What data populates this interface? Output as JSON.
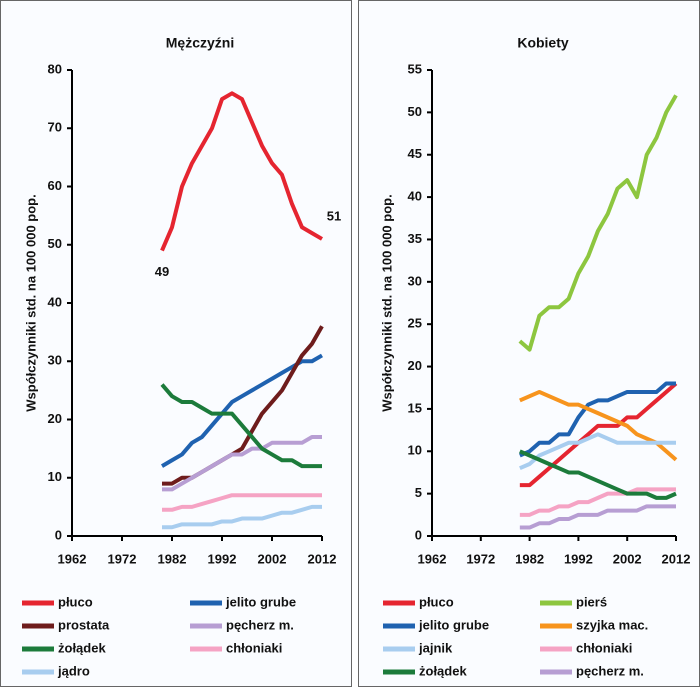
{
  "chart_data": [
    {
      "type": "line",
      "title": "Mężczyźni",
      "ylabel": "Współczynniki std. na 100 000 pop.",
      "x": [
        1980,
        1982,
        1984,
        1986,
        1988,
        1990,
        1992,
        1994,
        1996,
        1998,
        2000,
        2002,
        2004,
        2006,
        2008,
        2010,
        2012
      ],
      "xlim": [
        1962,
        2012
      ],
      "xticks": [
        1962,
        1972,
        1982,
        1992,
        2002,
        2012
      ],
      "ylim": [
        0,
        80
      ],
      "yticks": [
        0,
        10,
        20,
        30,
        40,
        50,
        60,
        70,
        80
      ],
      "annotations": [
        "49",
        "51"
      ],
      "series": [
        {
          "name": "płuco",
          "color": "#e52530",
          "values": [
            49,
            53,
            60,
            64,
            67,
            70,
            75,
            76,
            75,
            71,
            67,
            64,
            62,
            57,
            53,
            52,
            51
          ]
        },
        {
          "name": "jelito grube",
          "color": "#1f62b0",
          "values": [
            12,
            13,
            14,
            16,
            17,
            19,
            21,
            23,
            24,
            25,
            26,
            27,
            28,
            29,
            30,
            30,
            31
          ]
        },
        {
          "name": "prostata",
          "color": "#6e1c1c",
          "values": [
            9,
            9,
            10,
            10,
            11,
            12,
            13,
            14,
            15,
            18,
            21,
            23,
            25,
            28,
            31,
            33,
            36
          ]
        },
        {
          "name": "pęcherz m.",
          "color": "#b79ed3",
          "values": [
            8,
            8,
            9,
            10,
            11,
            12,
            13,
            14,
            14,
            15,
            15,
            16,
            16,
            16,
            16,
            17,
            17
          ]
        },
        {
          "name": "żołądek",
          "color": "#1c7b3b",
          "values": [
            26,
            24,
            23,
            23,
            22,
            21,
            21,
            21,
            19,
            17,
            15,
            14,
            13,
            13,
            12,
            12,
            12
          ]
        },
        {
          "name": "chłoniaki",
          "color": "#f5a3c4",
          "values": [
            4.5,
            4.5,
            5,
            5,
            5.5,
            6,
            6.5,
            7,
            7,
            7,
            7,
            7,
            7,
            7,
            7,
            7,
            7
          ]
        },
        {
          "name": "jądro",
          "color": "#a8cdef",
          "values": [
            1.5,
            1.5,
            2,
            2,
            2,
            2,
            2.5,
            2.5,
            3,
            3,
            3,
            3.5,
            4,
            4,
            4.5,
            5,
            5
          ]
        }
      ]
    },
    {
      "type": "line",
      "title": "Kobiety",
      "ylabel": "Współczynniki std. na 100 000 pop.",
      "x": [
        1980,
        1982,
        1984,
        1986,
        1988,
        1990,
        1992,
        1994,
        1996,
        1998,
        2000,
        2002,
        2004,
        2006,
        2008,
        2010,
        2012
      ],
      "xlim": [
        1962,
        2012
      ],
      "xticks": [
        1962,
        1972,
        1982,
        1992,
        2002,
        2012
      ],
      "ylim": [
        0,
        55
      ],
      "yticks": [
        0,
        5,
        10,
        15,
        20,
        25,
        30,
        35,
        40,
        45,
        50,
        55
      ],
      "series": [
        {
          "name": "płuco",
          "color": "#e52530",
          "values": [
            6,
            6,
            7,
            8,
            9,
            10,
            11,
            12,
            13,
            13,
            13,
            14,
            14,
            15,
            16,
            17,
            18
          ]
        },
        {
          "name": "pierś",
          "color": "#8dc63f",
          "values": [
            23,
            22,
            26,
            27,
            27,
            28,
            31,
            33,
            36,
            38,
            41,
            42,
            40,
            45,
            47,
            50,
            52
          ]
        },
        {
          "name": "jelito grube",
          "color": "#1f62b0",
          "values": [
            9.5,
            10,
            11,
            11,
            12,
            12,
            14,
            15.5,
            16,
            16,
            16.5,
            17,
            17,
            17,
            17,
            18,
            18
          ]
        },
        {
          "name": "szyjka mac.",
          "color": "#f7941d",
          "values": [
            16,
            16.5,
            17,
            16.5,
            16,
            15.5,
            15.5,
            15,
            14.5,
            14,
            13.5,
            13,
            12,
            11.5,
            11,
            10,
            9
          ]
        },
        {
          "name": "jajnik",
          "color": "#a8cdef",
          "values": [
            8,
            8.5,
            9.5,
            10,
            10.5,
            11,
            11,
            11.5,
            12,
            11.5,
            11,
            11,
            11,
            11,
            11,
            11,
            11
          ]
        },
        {
          "name": "chłoniaki",
          "color": "#f5a3c4",
          "values": [
            2.5,
            2.5,
            3,
            3,
            3.5,
            3.5,
            4,
            4,
            4.5,
            5,
            5,
            5,
            5.5,
            5.5,
            5.5,
            5.5,
            5.5
          ]
        },
        {
          "name": "żołądek",
          "color": "#1c7b3b",
          "values": [
            10,
            9.5,
            9,
            8.5,
            8,
            7.5,
            7.5,
            7,
            6.5,
            6,
            5.5,
            5,
            5,
            5,
            4.5,
            4.5,
            5
          ]
        },
        {
          "name": "pęcherz m.",
          "color": "#b79ed3",
          "values": [
            1,
            1,
            1.5,
            1.5,
            2,
            2,
            2.5,
            2.5,
            2.5,
            3,
            3,
            3,
            3,
            3.5,
            3.5,
            3.5,
            3.5
          ]
        }
      ]
    }
  ]
}
